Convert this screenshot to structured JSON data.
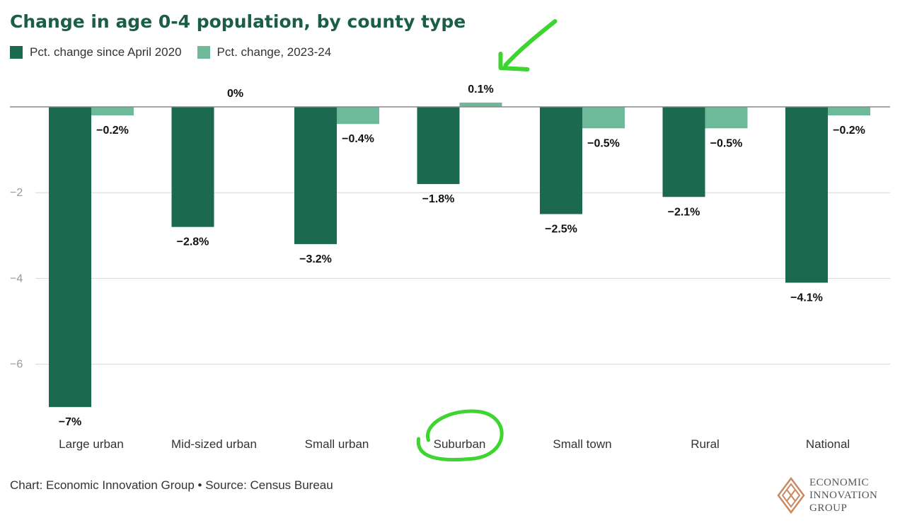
{
  "title": "Change in age 0-4 population, by county type",
  "legend": [
    {
      "label": "Pct. change since April 2020",
      "color": "#1b6a50"
    },
    {
      "label": "Pct. change, 2023-24",
      "color": "#6fb99b"
    }
  ],
  "footer": "Chart: Economic Innovation Group • Source: Census Bureau",
  "logo": {
    "line1": "ECONOMIC",
    "line2": "INNOVATION",
    "line3": "GROUP"
  },
  "annotation_color": "#3dd52f",
  "chart_data": {
    "type": "bar",
    "categories": [
      "Large urban",
      "Mid-sized urban",
      "Small urban",
      "Suburban",
      "Small town",
      "Rural",
      "National"
    ],
    "series": [
      {
        "name": "Pct. change since April 2020",
        "values": [
          -7,
          -2.8,
          -3.2,
          -1.8,
          -2.5,
          -2.1,
          -4.1
        ],
        "labels": [
          "−7%",
          "−2.8%",
          "−3.2%",
          "−1.8%",
          "−2.5%",
          "−2.1%",
          "−4.1%"
        ]
      },
      {
        "name": "Pct. change, 2023-24",
        "values": [
          -0.2,
          0,
          -0.4,
          0.1,
          -0.5,
          -0.5,
          -0.2
        ],
        "labels": [
          "−0.2%",
          "0%",
          "−0.4%",
          "0.1%",
          "−0.5%",
          "−0.5%",
          "−0.2%"
        ]
      }
    ],
    "y_ticks": [
      -2,
      -4,
      -6
    ],
    "y_tick_labels": [
      "−2",
      "−4",
      "−6"
    ],
    "ylim": [
      -7.3,
      0.5
    ],
    "highlighted_category": "Suburban",
    "grid": true
  }
}
